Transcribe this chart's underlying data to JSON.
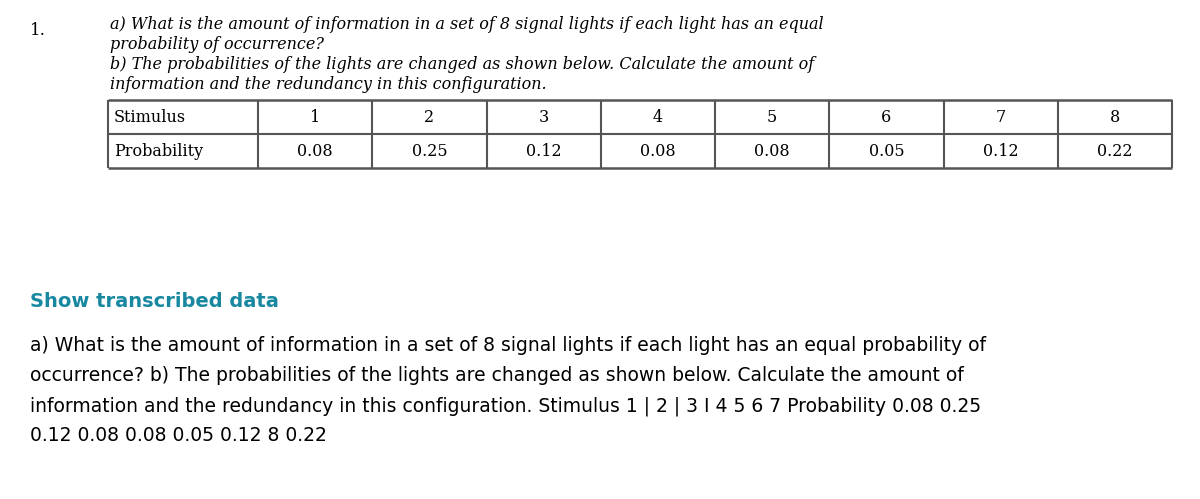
{
  "number": "1.",
  "question_italic": [
    "a) What is the amount of information in a set of 8 signal lights if each light has an equal",
    "probability of occurrence?",
    "b) The probabilities of the lights are changed as shown below. Calculate the amount of",
    "information and the redundancy in this configuration."
  ],
  "table_row1_label": "Stimulus",
  "table_row2_label": "Probability",
  "stimuli": [
    "1",
    "2",
    "3",
    "4",
    "5",
    "6",
    "7",
    "8"
  ],
  "probabilities": [
    "0.08",
    "0.25",
    "0.12",
    "0.08",
    "0.08",
    "0.05",
    "0.12",
    "0.22"
  ],
  "show_transcribed_label": "Show transcribed data",
  "transcribed_text": [
    "a) What is the amount of information in a set of 8 signal lights if each light has an equal probability of",
    "occurrence? b) The probabilities of the lights are changed as shown below. Calculate the amount of",
    "information and the redundancy in this configuration. Stimulus 1 | 2 | 3 I 4 5 6 7 Probability 0.08 0.25",
    "0.12 0.08 0.08 0.05 0.12 8 0.22"
  ],
  "bg_color": "#ffffff",
  "text_color": "#000000",
  "teal_color": "#1888a0",
  "table_border_color": "#555555",
  "q_font_size": 11.5,
  "number_font_size": 12,
  "table_font_size": 11.5,
  "show_font_size": 14,
  "trans_font_size": 13.5,
  "fig_width": 12.0,
  "fig_height": 4.99,
  "dpi": 100
}
